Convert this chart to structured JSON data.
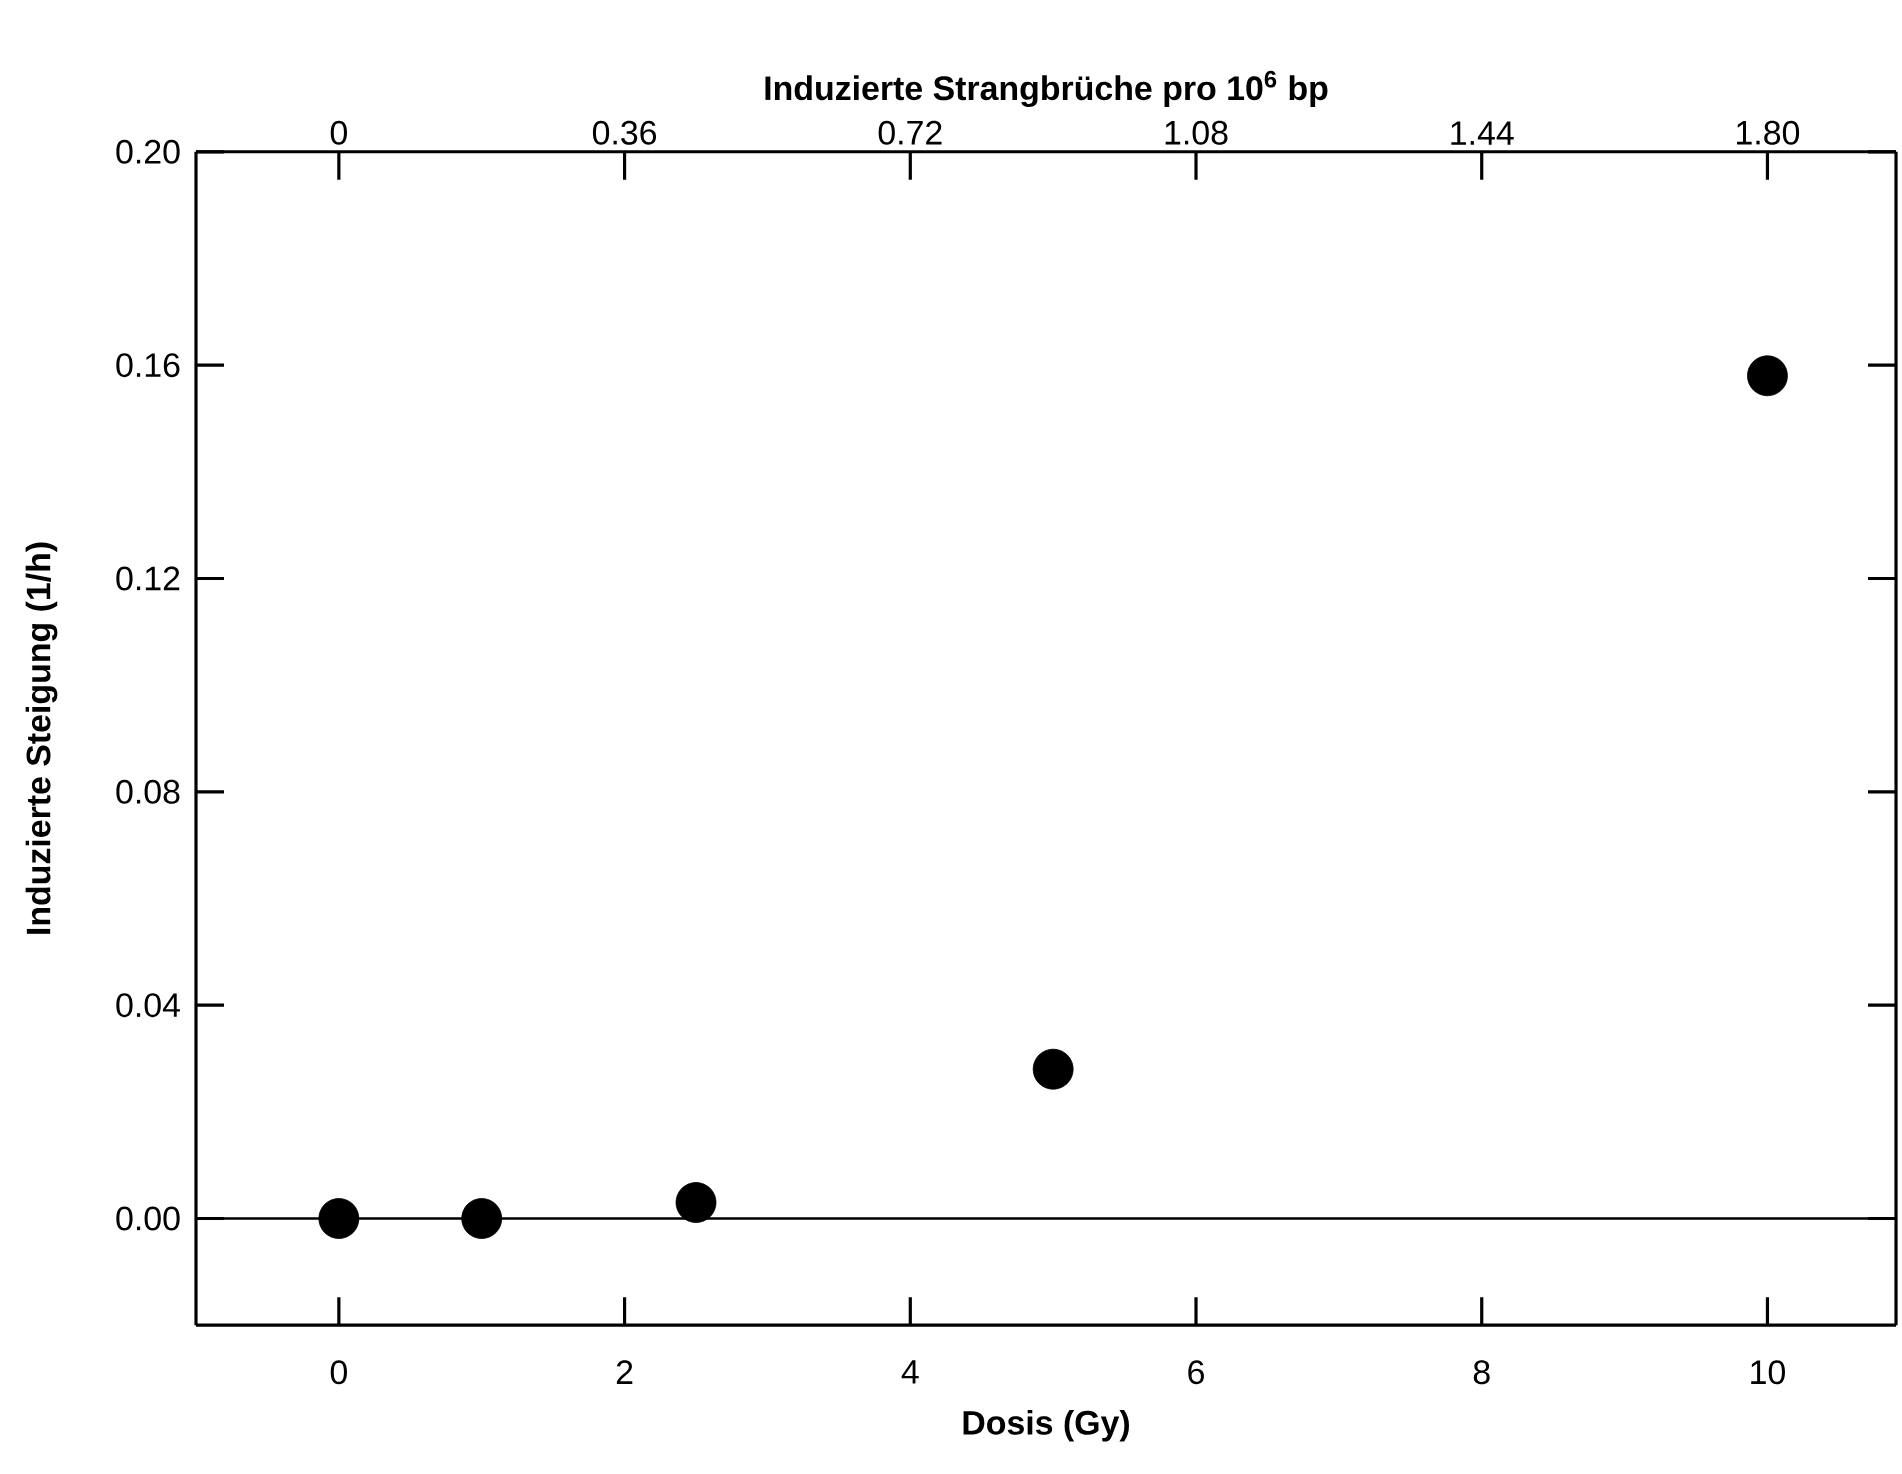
{
  "chart_data": {
    "type": "scatter",
    "xlabel": "Dosis (Gy)",
    "ylabel": "Induzierte Steigung  (1/h)",
    "x2label": "Induzierte Strangbrüche pro 10$^{6}$ bp",
    "x": [
      0,
      1,
      2.5,
      5,
      10
    ],
    "series": [
      {
        "color": "#000000",
        "values": [
          0,
          0,
          0.003,
          0.028,
          0.158
        ]
      }
    ],
    "marker": "circle",
    "xlim": [
      -1,
      10.9
    ],
    "xticks": [
      0,
      2,
      4,
      6,
      8,
      10
    ],
    "x2lim": [
      -0.18,
      1.962
    ],
    "x2ticks": [
      0,
      0.36,
      0.72,
      1.08,
      1.44,
      {
        "value": 1.8,
        "label": "1.80"
      }
    ],
    "ylim": [
      -0.02,
      0.2
    ],
    "yticks": [
      {
        "value": 0,
        "label": "0.00"
      },
      {
        "value": 0.04,
        "label": "0.04"
      },
      {
        "value": 0.08,
        "label": "0.08"
      },
      {
        "value": 0.12,
        "label": "0.12"
      },
      {
        "value": 0.16,
        "label": "0.16"
      },
      {
        "value": 0.2,
        "label": "0.20"
      }
    ],
    "ref_lines": [
      {
        "axis": "y",
        "value": 0,
        "color": "#000000",
        "line_style": "solid"
      }
    ]
  }
}
